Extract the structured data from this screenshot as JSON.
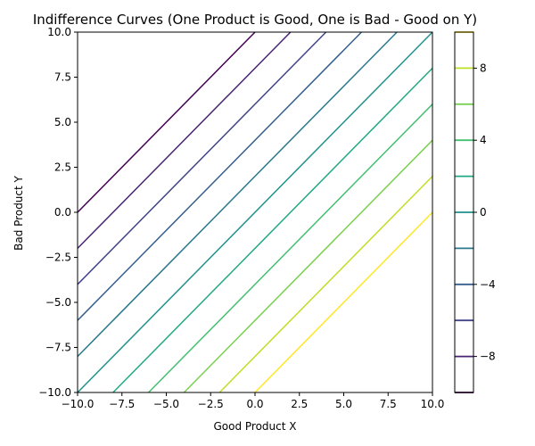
{
  "chart_data": {
    "type": "line",
    "title": "Indifference Curves (One Product is Good, One is Bad - Good on Y)",
    "xlabel": "Good Product X",
    "ylabel": "Bad Product Y",
    "xlim": [
      -10,
      10
    ],
    "ylim": [
      -10,
      10
    ],
    "x_ticks": [
      -10.0,
      -7.5,
      -5.0,
      -2.5,
      0.0,
      2.5,
      5.0,
      7.5,
      10.0
    ],
    "y_ticks": [
      -10.0,
      -7.5,
      -5.0,
      -2.5,
      0.0,
      2.5,
      5.0,
      7.5,
      10.0
    ],
    "x_tick_labels": [
      "−10.0",
      "−7.5",
      "−5.0",
      "−2.5",
      "0.0",
      "2.5",
      "5.0",
      "7.5",
      "10.0"
    ],
    "y_tick_labels": [
      "−10.0",
      "−7.5",
      "−5.0",
      "−2.5",
      "0.0",
      "2.5",
      "5.0",
      "7.5",
      "10.0"
    ],
    "grid": false,
    "relation": "y = x - level",
    "levels": [
      -10,
      -8,
      -6,
      -4,
      -2,
      0,
      2,
      4,
      6,
      8,
      10
    ],
    "colors": [
      "#440154",
      "#482475",
      "#414487",
      "#355f8d",
      "#2a788e",
      "#21918c",
      "#22a884",
      "#44bf70",
      "#7ad151",
      "#bddf26",
      "#fde725"
    ],
    "colorbar": {
      "range": [
        -10,
        10
      ],
      "ticks": [
        -8,
        -4,
        0,
        4,
        8
      ],
      "tick_labels": [
        "−8",
        "−4",
        "0",
        "4",
        "8"
      ]
    }
  }
}
